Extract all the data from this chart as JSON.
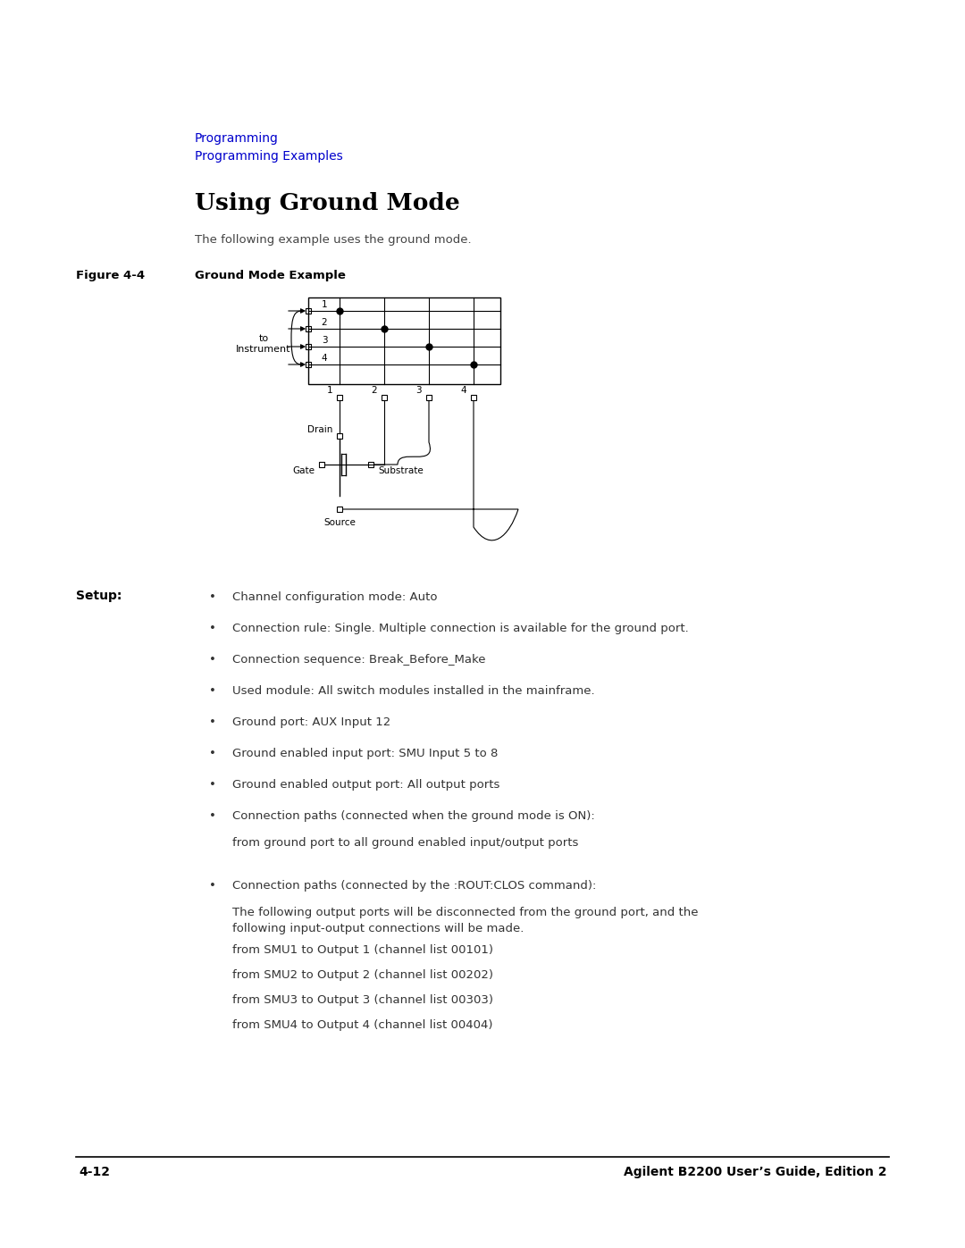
{
  "breadcrumb_line1": "Programming",
  "breadcrumb_line2": "Programming Examples",
  "breadcrumb_color": "#0000CC",
  "title": "Using Ground Mode",
  "intro": "The following example uses the ground mode.",
  "figure_label": "Figure 4-4",
  "figure_title": "Ground Mode Example",
  "setup_label": "Setup:",
  "bullet_items": [
    "Channel configuration mode: Auto",
    "Connection rule: Single. Multiple connection is available for the ground port.",
    "Connection sequence: Break_Before_Make",
    "Used module: All switch modules installed in the mainframe.",
    "Ground port: AUX Input 12",
    "Ground enabled input port: SMU Input 5 to 8",
    "Ground enabled output port: All output ports",
    "Connection paths (connected when the ground mode is ON):",
    "Connection paths (connected by the :ROUT:CLOS command):"
  ],
  "sub_text1": "from ground port to all ground enabled input/output ports",
  "sub_text2a": "The following output ports will be disconnected from the ground port, and the",
  "sub_text2b": "following input-output connections will be made.",
  "channel_list": [
    "from SMU1 to Output 1 (channel list 00101)",
    "from SMU2 to Output 2 (channel list 00202)",
    "from SMU3 to Output 3 (channel list 00303)",
    "from SMU4 to Output 4 (channel list 00404)"
  ],
  "footer_left": "4-12",
  "footer_right": "Agilent B2200 User’s Guide, Edition 2",
  "bg_color": "#ffffff",
  "text_color": "#000000",
  "dark_gray": "#333333",
  "mid_gray": "#444444"
}
